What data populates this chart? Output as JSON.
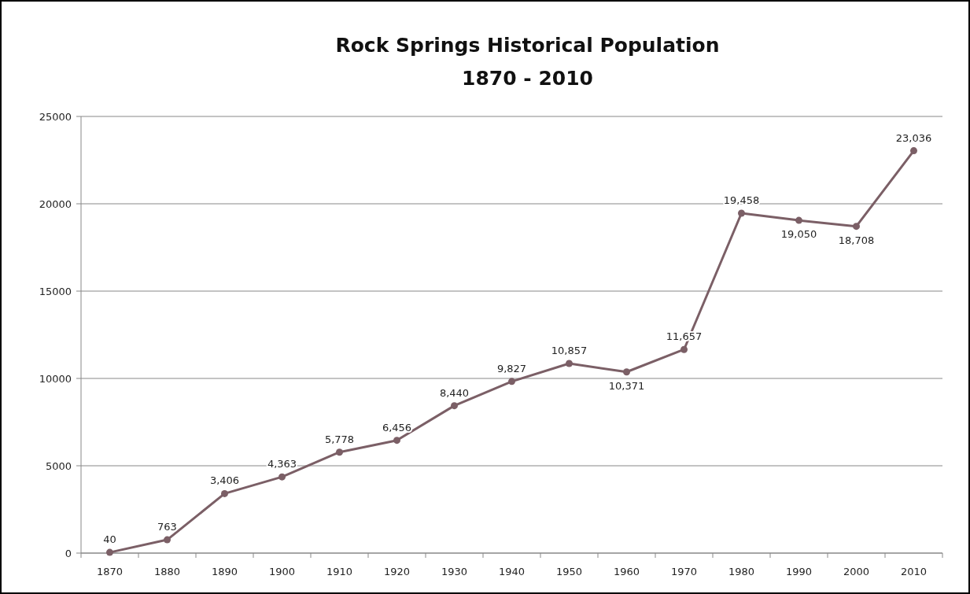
{
  "chart_data": {
    "type": "line",
    "title": "Rock Springs Historical Population",
    "subtitle": "1870 - 2010",
    "categories": [
      "1870",
      "1880",
      "1890",
      "1900",
      "1910",
      "1920",
      "1930",
      "1940",
      "1950",
      "1960",
      "1970",
      "1980",
      "1990",
      "2000",
      "2010"
    ],
    "series": [
      {
        "color": "#7b5f66",
        "values": [
          40,
          763,
          3406,
          4363,
          5778,
          6456,
          8440,
          9827,
          10857,
          10371,
          11657,
          19458,
          19050,
          18708,
          23036
        ],
        "value_labels": [
          "40",
          "763",
          "3,406",
          "4,363",
          "5,778",
          "6,456",
          "8,440",
          "9,827",
          "10,857",
          "10,371",
          "11,657",
          "19,458",
          "19,050",
          "18,708",
          "23,036"
        ]
      }
    ],
    "ylim": [
      0,
      25000
    ],
    "yticks": [
      0,
      5000,
      10000,
      15000,
      20000,
      25000
    ],
    "grid": "y",
    "marker": "circle",
    "line_style": "solid"
  }
}
